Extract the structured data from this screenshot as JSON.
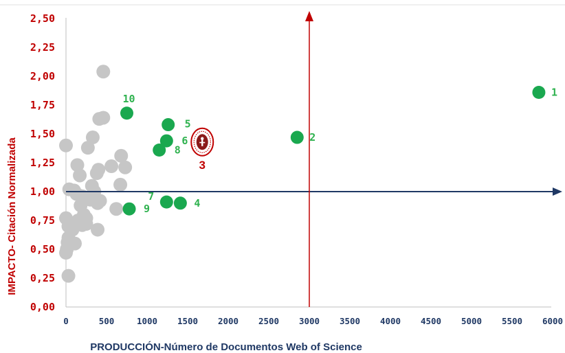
{
  "chart_data": {
    "type": "scatter",
    "xlabel": "PRODUCCIÓN-Número  de Documentos  Web of Science",
    "ylabel": "IMPACTO- Citación Normalizada",
    "xlim": [
      0,
      6000
    ],
    "ylim": [
      0,
      2.5
    ],
    "x_ticks": [
      "0",
      "500",
      "1000",
      "1500",
      "2000",
      "2500",
      "3000",
      "3500",
      "4000",
      "4500",
      "5000",
      "5500",
      "6000"
    ],
    "y_ticks": [
      "0,00",
      "0,25",
      "0,50",
      "0,75",
      "1,00",
      "1,25",
      "1,50",
      "1,75",
      "2,00",
      "2,25",
      "2,50"
    ],
    "grid": false,
    "reference_lines": {
      "x": 3000,
      "y": 1.0
    },
    "colors": {
      "gray": "#c6c6c6",
      "green": "#1aa84f",
      "green_label": "#2fb24f",
      "red": "#c00000",
      "navy": "#1f3864"
    },
    "series": [
      {
        "points": [
          {
            "x": 460,
            "y": 2.04
          },
          {
            "x": 410,
            "y": 1.63
          },
          {
            "x": 460,
            "y": 1.64
          },
          {
            "x": 330,
            "y": 1.47
          },
          {
            "x": 270,
            "y": 1.38
          },
          {
            "x": 0,
            "y": 1.4
          },
          {
            "x": 680,
            "y": 1.31
          },
          {
            "x": 730,
            "y": 1.21
          },
          {
            "x": 560,
            "y": 1.22
          },
          {
            "x": 140,
            "y": 1.23
          },
          {
            "x": 400,
            "y": 1.19
          },
          {
            "x": 380,
            "y": 1.16
          },
          {
            "x": 170,
            "y": 1.14
          },
          {
            "x": 670,
            "y": 1.06
          },
          {
            "x": 320,
            "y": 1.05
          },
          {
            "x": 40,
            "y": 1.02
          },
          {
            "x": 100,
            "y": 1.01
          },
          {
            "x": 130,
            "y": 0.98
          },
          {
            "x": 200,
            "y": 0.96
          },
          {
            "x": 300,
            "y": 0.93
          },
          {
            "x": 350,
            "y": 1.0
          },
          {
            "x": 420,
            "y": 0.92
          },
          {
            "x": 180,
            "y": 0.88
          },
          {
            "x": 620,
            "y": 0.85
          },
          {
            "x": 390,
            "y": 0.9
          },
          {
            "x": 220,
            "y": 0.8
          },
          {
            "x": 150,
            "y": 0.75
          },
          {
            "x": 250,
            "y": 0.77
          },
          {
            "x": 200,
            "y": 0.71
          },
          {
            "x": 250,
            "y": 0.72
          },
          {
            "x": 100,
            "y": 0.72
          },
          {
            "x": 0,
            "y": 0.77
          },
          {
            "x": 30,
            "y": 0.7
          },
          {
            "x": 80,
            "y": 0.67
          },
          {
            "x": 390,
            "y": 0.67
          },
          {
            "x": 30,
            "y": 0.6
          },
          {
            "x": 20,
            "y": 0.56
          },
          {
            "x": 110,
            "y": 0.55
          },
          {
            "x": 10,
            "y": 0.5
          },
          {
            "x": 0,
            "y": 0.47
          },
          {
            "x": 30,
            "y": 0.27
          }
        ]
      },
      {
        "points": [
          {
            "x": 5830,
            "y": 1.86,
            "label": "1"
          },
          {
            "x": 2850,
            "y": 1.47,
            "label": "2"
          },
          {
            "x": 1410,
            "y": 0.9,
            "label": "4"
          },
          {
            "x": 1260,
            "y": 1.58,
            "label": "5"
          },
          {
            "x": 1240,
            "y": 1.44,
            "label": "6"
          },
          {
            "x": 1240,
            "y": 0.91,
            "label": "7"
          },
          {
            "x": 1150,
            "y": 1.36,
            "label": "8"
          },
          {
            "x": 780,
            "y": 0.85,
            "label": "9"
          },
          {
            "x": 750,
            "y": 1.68,
            "label": "10"
          }
        ]
      },
      {
        "points": [
          {
            "x": 1680,
            "y": 1.43,
            "label": "3"
          }
        ]
      }
    ]
  }
}
